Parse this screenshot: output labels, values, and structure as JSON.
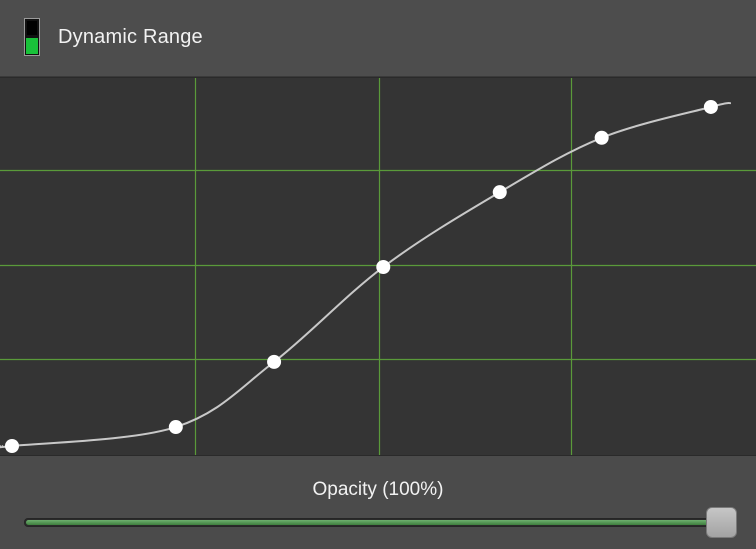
{
  "header": {
    "title": "Dynamic Range",
    "icon": "dynamic-range-icon",
    "icon_color": "#19c23a"
  },
  "curve": {
    "grid_color": "#5a9a3a",
    "line_color": "#c8c8c8",
    "point_color": "#ffffff",
    "grid_divisions": 4,
    "control_points": [
      {
        "input": 0.0,
        "output": 0.0
      },
      {
        "input": 0.225,
        "output": 0.053
      },
      {
        "input": 0.36,
        "output": 0.235
      },
      {
        "input": 0.51,
        "output": 0.5
      },
      {
        "input": 0.67,
        "output": 0.709
      },
      {
        "input": 0.81,
        "output": 0.861
      },
      {
        "input": 0.96,
        "output": 0.947
      }
    ]
  },
  "opacity": {
    "label": "Opacity (100%)",
    "value": 1.0
  }
}
